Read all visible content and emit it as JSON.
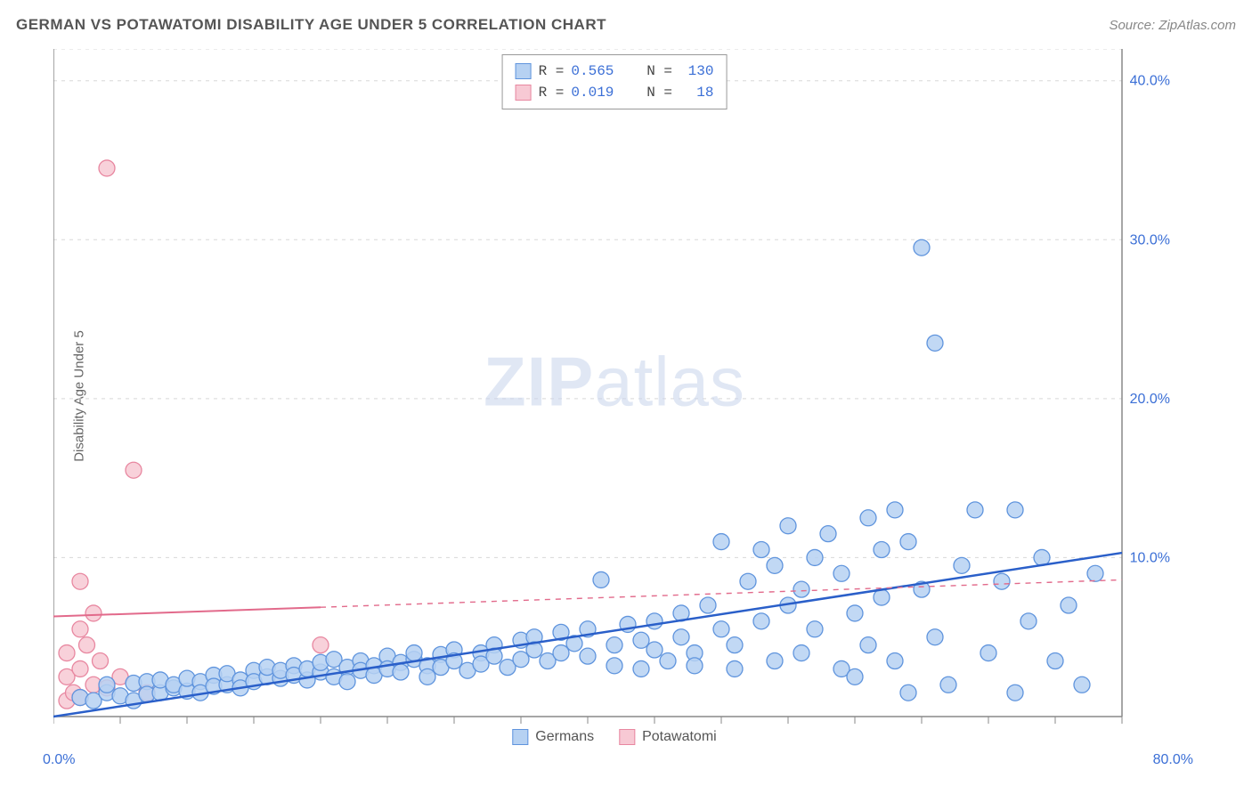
{
  "title": "GERMAN VS POTAWATOMI DISABILITY AGE UNDER 5 CORRELATION CHART",
  "source": "Source: ZipAtlas.com",
  "watermark_bold": "ZIP",
  "watermark_light": "atlas",
  "y_axis_label": "Disability Age Under 5",
  "chart": {
    "type": "scatter",
    "xlim": [
      0,
      80
    ],
    "ylim": [
      0,
      42
    ],
    "x_axis_label_min": "0.0%",
    "x_axis_label_max": "80.0%",
    "y_ticks": [
      10,
      20,
      30,
      40
    ],
    "y_tick_labels": [
      "10.0%",
      "20.0%",
      "30.0%",
      "40.0%"
    ],
    "x_tick_positions": [
      0,
      5,
      10,
      15,
      20,
      25,
      30,
      35,
      40,
      45,
      50,
      55,
      60,
      65,
      70,
      75,
      80
    ],
    "grid_color": "#d8d8d8",
    "axis_color": "#888888",
    "background_color": "#ffffff",
    "marker_radius": 9,
    "series": [
      {
        "name": "Germans",
        "fill": "#b6d1f2",
        "stroke": "#5f94dd",
        "trend": {
          "x1": 0,
          "y1": 0,
          "x2": 80,
          "y2": 10.3,
          "color": "#2a5fc9",
          "width": 2.5
        },
        "r": "0.565",
        "n": "130",
        "points": [
          [
            2,
            1.2
          ],
          [
            3,
            1.0
          ],
          [
            4,
            1.5
          ],
          [
            4,
            2.0
          ],
          [
            5,
            1.3
          ],
          [
            6,
            2.1
          ],
          [
            6,
            1.0
          ],
          [
            7,
            2.2
          ],
          [
            7,
            1.4
          ],
          [
            8,
            1.5
          ],
          [
            8,
            2.3
          ],
          [
            9,
            1.8
          ],
          [
            9,
            2.0
          ],
          [
            10,
            1.6
          ],
          [
            10,
            2.4
          ],
          [
            11,
            2.2
          ],
          [
            11,
            1.5
          ],
          [
            12,
            2.6
          ],
          [
            12,
            1.9
          ],
          [
            13,
            2.0
          ],
          [
            13,
            2.7
          ],
          [
            14,
            2.3
          ],
          [
            14,
            1.8
          ],
          [
            15,
            2.9
          ],
          [
            15,
            2.2
          ],
          [
            16,
            2.5
          ],
          [
            16,
            3.1
          ],
          [
            17,
            2.4
          ],
          [
            17,
            2.9
          ],
          [
            18,
            3.2
          ],
          [
            18,
            2.6
          ],
          [
            19,
            2.3
          ],
          [
            19,
            3.0
          ],
          [
            20,
            2.8
          ],
          [
            20,
            3.4
          ],
          [
            21,
            3.6
          ],
          [
            21,
            2.5
          ],
          [
            22,
            3.1
          ],
          [
            22,
            2.2
          ],
          [
            23,
            3.5
          ],
          [
            23,
            2.9
          ],
          [
            24,
            3.2
          ],
          [
            24,
            2.6
          ],
          [
            25,
            3.8
          ],
          [
            25,
            3.0
          ],
          [
            26,
            3.4
          ],
          [
            26,
            2.8
          ],
          [
            27,
            3.6
          ],
          [
            27,
            4.0
          ],
          [
            28,
            3.2
          ],
          [
            28,
            2.5
          ],
          [
            29,
            3.9
          ],
          [
            29,
            3.1
          ],
          [
            30,
            4.2
          ],
          [
            30,
            3.5
          ],
          [
            31,
            2.9
          ],
          [
            32,
            4.0
          ],
          [
            32,
            3.3
          ],
          [
            33,
            4.5
          ],
          [
            33,
            3.8
          ],
          [
            34,
            3.1
          ],
          [
            35,
            4.8
          ],
          [
            35,
            3.6
          ],
          [
            36,
            5.0
          ],
          [
            36,
            4.2
          ],
          [
            37,
            3.5
          ],
          [
            38,
            4.0
          ],
          [
            38,
            5.3
          ],
          [
            39,
            4.6
          ],
          [
            40,
            3.8
          ],
          [
            40,
            5.5
          ],
          [
            41,
            8.6
          ],
          [
            42,
            4.5
          ],
          [
            42,
            3.2
          ],
          [
            43,
            5.8
          ],
          [
            44,
            4.8
          ],
          [
            44,
            3.0
          ],
          [
            45,
            6.0
          ],
          [
            45,
            4.2
          ],
          [
            46,
            3.5
          ],
          [
            47,
            6.5
          ],
          [
            47,
            5.0
          ],
          [
            48,
            4.0
          ],
          [
            48,
            3.2
          ],
          [
            49,
            7.0
          ],
          [
            50,
            5.5
          ],
          [
            50,
            11.0
          ],
          [
            51,
            4.5
          ],
          [
            51,
            3.0
          ],
          [
            52,
            8.5
          ],
          [
            53,
            6.0
          ],
          [
            53,
            10.5
          ],
          [
            54,
            3.5
          ],
          [
            54,
            9.5
          ],
          [
            55,
            12.0
          ],
          [
            55,
            7.0
          ],
          [
            56,
            4.0
          ],
          [
            56,
            8.0
          ],
          [
            57,
            10.0
          ],
          [
            57,
            5.5
          ],
          [
            58,
            11.5
          ],
          [
            59,
            3.0
          ],
          [
            59,
            9.0
          ],
          [
            60,
            6.5
          ],
          [
            60,
            2.5
          ],
          [
            61,
            12.5
          ],
          [
            61,
            4.5
          ],
          [
            62,
            10.5
          ],
          [
            62,
            7.5
          ],
          [
            63,
            13.0
          ],
          [
            63,
            3.5
          ],
          [
            64,
            1.5
          ],
          [
            64,
            11.0
          ],
          [
            65,
            29.5
          ],
          [
            65,
            8.0
          ],
          [
            66,
            5.0
          ],
          [
            66,
            23.5
          ],
          [
            67,
            2.0
          ],
          [
            68,
            9.5
          ],
          [
            69,
            13.0
          ],
          [
            70,
            4.0
          ],
          [
            71,
            8.5
          ],
          [
            72,
            1.5
          ],
          [
            72,
            13.0
          ],
          [
            73,
            6.0
          ],
          [
            74,
            10.0
          ],
          [
            75,
            3.5
          ],
          [
            76,
            7.0
          ],
          [
            77,
            2.0
          ],
          [
            78,
            9.0
          ]
        ]
      },
      {
        "name": "Potawatomi",
        "fill": "#f7c9d4",
        "stroke": "#e887a0",
        "trend": {
          "x1": 0,
          "y1": 6.3,
          "x2": 80,
          "y2": 8.6,
          "color": "#e26a8b",
          "width": 2,
          "dash_from": 20
        },
        "r": "0.019",
        "n": "18",
        "points": [
          [
            1,
            1.0
          ],
          [
            1,
            2.5
          ],
          [
            1,
            4.0
          ],
          [
            1.5,
            1.5
          ],
          [
            2,
            8.5
          ],
          [
            2,
            3.0
          ],
          [
            2,
            5.5
          ],
          [
            2,
            1.2
          ],
          [
            2.5,
            4.5
          ],
          [
            3,
            2.0
          ],
          [
            3,
            6.5
          ],
          [
            3.5,
            3.5
          ],
          [
            4,
            1.8
          ],
          [
            4,
            34.5
          ],
          [
            5,
            2.5
          ],
          [
            6,
            15.5
          ],
          [
            7,
            1.5
          ],
          [
            20,
            4.5
          ]
        ]
      }
    ],
    "legend_bottom": [
      {
        "label": "Germans",
        "fill": "#b6d1f2",
        "stroke": "#5f94dd"
      },
      {
        "label": "Potawatomi",
        "fill": "#f7c9d4",
        "stroke": "#e887a0"
      }
    ]
  }
}
